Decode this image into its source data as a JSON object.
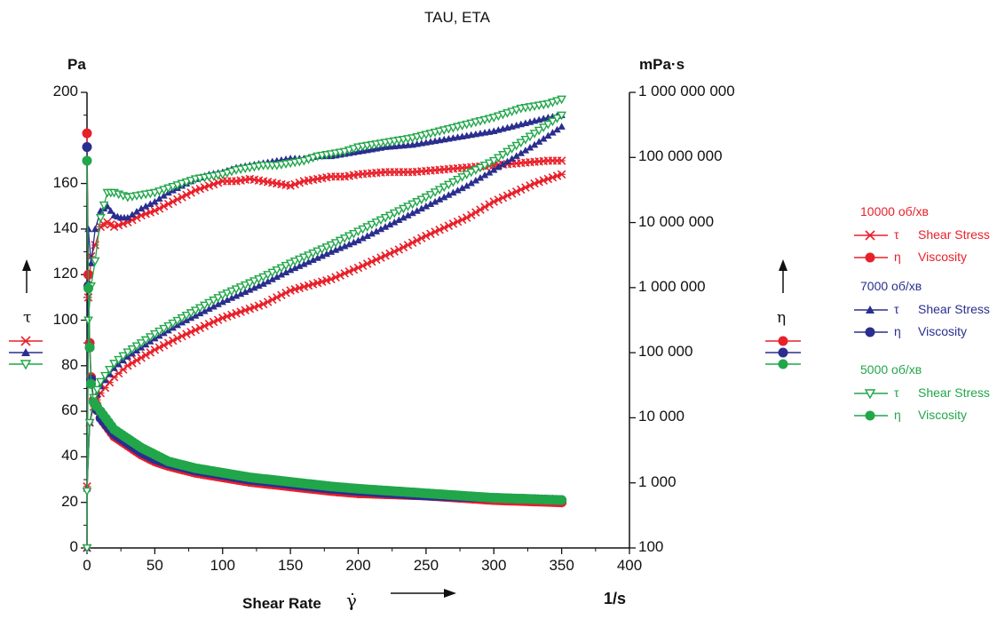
{
  "chart_data": {
    "type": "line",
    "title": "TAU, ETA",
    "xlabel": "Shear Rate",
    "xlabel_symbol": "γ̇",
    "x_unit": "1/s",
    "y_left_unit": "Pa",
    "y_right_unit": "mPa·s",
    "y_left_symbol": "τ",
    "y_right_symbol": "η",
    "xlim": [
      0,
      400
    ],
    "ylim_left": [
      0,
      200
    ],
    "ylim_right": [
      100,
      1000000000
    ],
    "y_right_scale": "log",
    "x_ticks": [
      "0",
      "50",
      "100",
      "150",
      "200",
      "250",
      "300",
      "350",
      "400"
    ],
    "y_left_ticks": [
      "0",
      "20",
      "40",
      "60",
      "80",
      "100",
      "120",
      "140",
      "160",
      "200"
    ],
    "y_right_ticks": [
      "100",
      "1 000",
      "10 000",
      "100 000",
      "1 000 000",
      "10 000 000",
      "100 000 000",
      "1 000 000 000"
    ],
    "legend_position": "right",
    "groups": [
      {
        "name": "10000 об/хв",
        "color": "#e8202a",
        "stress_label": "Shear Stress",
        "viscosity_label": "Viscosity",
        "stress_marker": "x",
        "shear_stress": [
          [
            0,
            0
          ],
          [
            1,
            110
          ],
          [
            3,
            128
          ],
          [
            6,
            133
          ],
          [
            10,
            141
          ],
          [
            15,
            143
          ],
          [
            20,
            141
          ],
          [
            30,
            143
          ],
          [
            40,
            146
          ],
          [
            50,
            148
          ],
          [
            60,
            151
          ],
          [
            70,
            154
          ],
          [
            80,
            157
          ],
          [
            90,
            159
          ],
          [
            100,
            161
          ],
          [
            110,
            161
          ],
          [
            120,
            162
          ],
          [
            130,
            161
          ],
          [
            140,
            160
          ],
          [
            150,
            159
          ],
          [
            160,
            161
          ],
          [
            170,
            162
          ],
          [
            180,
            163
          ],
          [
            190,
            163
          ],
          [
            200,
            164
          ],
          [
            220,
            165
          ],
          [
            240,
            165
          ],
          [
            260,
            166
          ],
          [
            280,
            167
          ],
          [
            300,
            168
          ],
          [
            320,
            169
          ],
          [
            340,
            170
          ],
          [
            350,
            170
          ]
        ],
        "viscosity_left_axis": [
          [
            0,
            182
          ],
          [
            1,
            120
          ],
          [
            2,
            90
          ],
          [
            3,
            75
          ],
          [
            5,
            65
          ],
          [
            10,
            57
          ],
          [
            20,
            49
          ],
          [
            30,
            45
          ],
          [
            40,
            41
          ],
          [
            50,
            38
          ],
          [
            60,
            36
          ],
          [
            80,
            33
          ],
          [
            100,
            31
          ],
          [
            120,
            29
          ],
          [
            150,
            27
          ],
          [
            180,
            25
          ],
          [
            200,
            24
          ],
          [
            250,
            23
          ],
          [
            300,
            21
          ],
          [
            350,
            20
          ]
        ],
        "viscosity_left_axis_rise": [
          [
            0,
            27
          ],
          [
            2,
            55
          ],
          [
            5,
            62
          ],
          [
            10,
            68
          ],
          [
            20,
            75
          ],
          [
            30,
            80
          ],
          [
            50,
            87
          ],
          [
            70,
            93
          ],
          [
            100,
            101
          ],
          [
            130,
            107
          ],
          [
            150,
            113
          ],
          [
            180,
            118
          ],
          [
            200,
            123
          ],
          [
            230,
            131
          ],
          [
            250,
            137
          ],
          [
            280,
            145
          ],
          [
            300,
            152
          ],
          [
            330,
            160
          ],
          [
            350,
            164
          ]
        ]
      },
      {
        "name": "7000 об/хв",
        "color": "#2a2e8e",
        "stress_label": "Shear Stress",
        "viscosity_label": "Viscosity",
        "stress_marker": "triangle-up",
        "shear_stress": [
          [
            0,
            0
          ],
          [
            1,
            140
          ],
          [
            3,
            125
          ],
          [
            6,
            140
          ],
          [
            10,
            148
          ],
          [
            15,
            150
          ],
          [
            20,
            146
          ],
          [
            25,
            145
          ],
          [
            30,
            145
          ],
          [
            40,
            149
          ],
          [
            50,
            152
          ],
          [
            60,
            156
          ],
          [
            70,
            159
          ],
          [
            80,
            162
          ],
          [
            90,
            164
          ],
          [
            100,
            165
          ],
          [
            110,
            167
          ],
          [
            120,
            168
          ],
          [
            130,
            169
          ],
          [
            140,
            170
          ],
          [
            150,
            171
          ],
          [
            160,
            171
          ],
          [
            170,
            172
          ],
          [
            180,
            172
          ],
          [
            190,
            173
          ],
          [
            200,
            174
          ],
          [
            220,
            176
          ],
          [
            240,
            177
          ],
          [
            260,
            179
          ],
          [
            280,
            181
          ],
          [
            300,
            183
          ],
          [
            320,
            186
          ],
          [
            340,
            189
          ],
          [
            350,
            190
          ]
        ],
        "viscosity_left_axis": [
          [
            0,
            176
          ],
          [
            1,
            115
          ],
          [
            2,
            88
          ],
          [
            3,
            74
          ],
          [
            5,
            64
          ],
          [
            10,
            57
          ],
          [
            20,
            50
          ],
          [
            30,
            46
          ],
          [
            40,
            42
          ],
          [
            50,
            39
          ],
          [
            60,
            37
          ],
          [
            80,
            34
          ],
          [
            100,
            32
          ],
          [
            120,
            30
          ],
          [
            150,
            28
          ],
          [
            180,
            26
          ],
          [
            200,
            25
          ],
          [
            250,
            23
          ],
          [
            300,
            22
          ],
          [
            350,
            21
          ]
        ],
        "viscosity_left_axis_rise": [
          [
            0,
            26
          ],
          [
            2,
            55
          ],
          [
            5,
            64
          ],
          [
            10,
            71
          ],
          [
            20,
            79
          ],
          [
            30,
            84
          ],
          [
            50,
            92
          ],
          [
            70,
            99
          ],
          [
            100,
            108
          ],
          [
            130,
            116
          ],
          [
            150,
            122
          ],
          [
            180,
            130
          ],
          [
            200,
            135
          ],
          [
            230,
            144
          ],
          [
            250,
            150
          ],
          [
            280,
            159
          ],
          [
            300,
            166
          ],
          [
            330,
            177
          ],
          [
            350,
            185
          ]
        ]
      },
      {
        "name": "5000 об/хв",
        "color": "#21a64a",
        "stress_label": "Shear Stress",
        "viscosity_label": "Viscosity",
        "stress_marker": "triangle-down",
        "shear_stress": [
          [
            0,
            0
          ],
          [
            1,
            100
          ],
          [
            3,
            115
          ],
          [
            6,
            126
          ],
          [
            10,
            145
          ],
          [
            15,
            156
          ],
          [
            20,
            156
          ],
          [
            30,
            154
          ],
          [
            40,
            155
          ],
          [
            50,
            156
          ],
          [
            60,
            158
          ],
          [
            70,
            160
          ],
          [
            80,
            162
          ],
          [
            90,
            163
          ],
          [
            100,
            164
          ],
          [
            110,
            166
          ],
          [
            120,
            167
          ],
          [
            130,
            168
          ],
          [
            140,
            168
          ],
          [
            150,
            169
          ],
          [
            160,
            170
          ],
          [
            170,
            172
          ],
          [
            180,
            173
          ],
          [
            190,
            174
          ],
          [
            200,
            176
          ],
          [
            220,
            178
          ],
          [
            240,
            180
          ],
          [
            260,
            183
          ],
          [
            280,
            186
          ],
          [
            300,
            189
          ],
          [
            320,
            193
          ],
          [
            340,
            195
          ],
          [
            350,
            197
          ]
        ],
        "viscosity_left_axis": [
          [
            0,
            170
          ],
          [
            1,
            114
          ],
          [
            2,
            88
          ],
          [
            3,
            72
          ],
          [
            5,
            64
          ],
          [
            10,
            60
          ],
          [
            20,
            52
          ],
          [
            30,
            48
          ],
          [
            40,
            44
          ],
          [
            50,
            41
          ],
          [
            60,
            38
          ],
          [
            80,
            35
          ],
          [
            100,
            33
          ],
          [
            120,
            31
          ],
          [
            150,
            29
          ],
          [
            180,
            27
          ],
          [
            200,
            26
          ],
          [
            250,
            24
          ],
          [
            300,
            22
          ],
          [
            350,
            21
          ]
        ],
        "viscosity_left_axis_rise": [
          [
            0,
            25
          ],
          [
            2,
            55
          ],
          [
            5,
            66
          ],
          [
            10,
            73
          ],
          [
            20,
            81
          ],
          [
            30,
            86
          ],
          [
            50,
            94
          ],
          [
            70,
            101
          ],
          [
            100,
            111
          ],
          [
            130,
            119
          ],
          [
            150,
            125
          ],
          [
            180,
            133
          ],
          [
            200,
            139
          ],
          [
            230,
            148
          ],
          [
            250,
            154
          ],
          [
            280,
            164
          ],
          [
            300,
            170
          ],
          [
            330,
            182
          ],
          [
            350,
            190
          ]
        ]
      }
    ]
  }
}
